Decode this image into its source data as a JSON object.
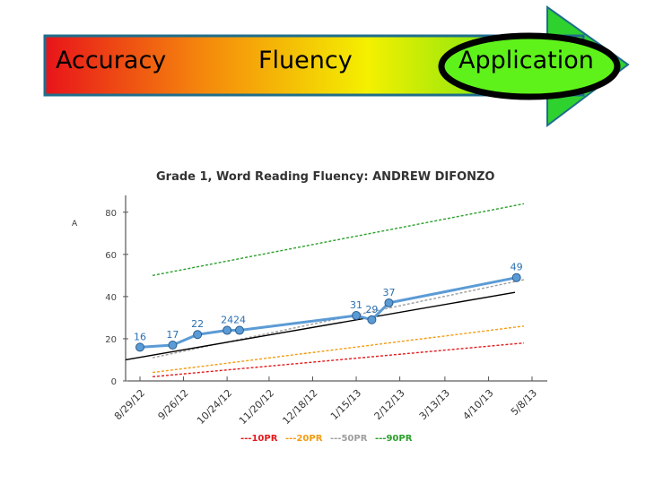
{
  "banner": {
    "stages": [
      "Accuracy",
      "Fluency",
      "Application"
    ],
    "highlighted_stage": "Application",
    "colors": {
      "gradient_start": "#e8141a",
      "gradient_mid1": "#f58a0c",
      "gradient_mid2": "#f4f000",
      "gradient_end": "#38e01a",
      "arrow_fill": "#2fd12f",
      "highlight_fill": "#5ef21a",
      "highlight_ring": "#000000"
    }
  },
  "chart_data": {
    "type": "line",
    "title": "Grade 1, Word Reading Fluency: ANDREW DIFONZO",
    "ylabel": "A",
    "xlabel": "",
    "ylim": [
      0,
      85
    ],
    "yticks": [
      0,
      20,
      40,
      60,
      80
    ],
    "categories": [
      "8/29/12",
      "9/26/12",
      "10/24/12",
      "11/20/12",
      "12/18/12",
      "1/15/13",
      "2/12/13",
      "3/13/13",
      "4/10/13",
      "5/8/13"
    ],
    "student": {
      "x": [
        "8/29/12",
        "9/19/12",
        "10/5/12",
        "10/24/12",
        "11/1/12",
        "1/15/13",
        "1/25/13",
        "2/5/13",
        "4/28/13"
      ],
      "values": [
        16,
        17,
        22,
        24,
        24,
        31,
        29,
        37,
        49
      ],
      "labels": [
        "16",
        "17",
        "22",
        "24",
        "24",
        "31",
        "29",
        "37",
        "49"
      ],
      "color": "#5b9bd5"
    },
    "trend_line": {
      "start": 10,
      "end": 42,
      "color": "#000000"
    },
    "series": [
      {
        "name": "10PR",
        "start": 2,
        "end": 18,
        "color": "#e31a1c"
      },
      {
        "name": "20PR",
        "start": 4,
        "end": 26,
        "color": "#f39c12"
      },
      {
        "name": "50PR",
        "start": 11,
        "end": 48,
        "color": "#9e9e9e"
      },
      {
        "name": "90PR",
        "start": 50,
        "end": 84,
        "color": "#2ca02c"
      }
    ],
    "legend": {
      "position": "bottom",
      "prefix": "---"
    },
    "grid": false
  }
}
